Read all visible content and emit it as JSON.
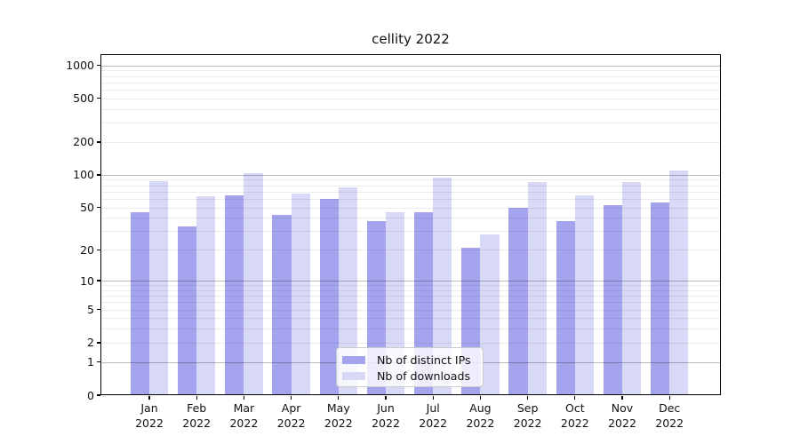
{
  "title": "cellity 2022",
  "chart_data": {
    "type": "bar",
    "title": "cellity 2022",
    "categories": [
      "Jan 2022",
      "Feb 2022",
      "Mar 2022",
      "Apr 2022",
      "May 2022",
      "Jun 2022",
      "Jul 2022",
      "Aug 2022",
      "Sep 2022",
      "Oct 2022",
      "Nov 2022",
      "Dec 2022"
    ],
    "series": [
      {
        "name": "Nb of distinct IPs",
        "color": "#a3a3ee",
        "values": [
          45,
          33,
          65,
          43,
          60,
          37,
          45,
          21,
          50,
          37,
          53,
          56
        ]
      },
      {
        "name": "Nb of downloads",
        "color": "#d8d8f7",
        "values": [
          88,
          64,
          103,
          67,
          76,
          45,
          94,
          28,
          86,
          65,
          86,
          110
        ]
      }
    ],
    "xlabel": "",
    "ylabel": "",
    "yscale": "log10(value+1)",
    "ylim": [
      0,
      1264
    ],
    "yticks": [
      0,
      1,
      2,
      5,
      10,
      20,
      50,
      100,
      200,
      500,
      1000
    ],
    "grid": {
      "major_at": [
        1,
        10,
        100,
        1000
      ],
      "minor_at": [
        2,
        3,
        4,
        5,
        6,
        7,
        8,
        9,
        20,
        30,
        40,
        50,
        60,
        70,
        80,
        90,
        200,
        300,
        400,
        500,
        600,
        700,
        800,
        900
      ],
      "drawn_above_bars": true
    },
    "legend_position": "lower center"
  },
  "legend": {
    "items": [
      {
        "label": "Nb of distinct IPs",
        "color": "#a3a3ee"
      },
      {
        "label": "Nb of downloads",
        "color": "#d8d8f7"
      }
    ]
  },
  "colors": {
    "series_ips": "#a3a3ee",
    "series_downloads": "#d8d8f7",
    "grid_major": "rgba(0,0,0,0.27)",
    "grid_minor": "rgba(0,0,0,0.075)",
    "spine": "#000000",
    "background": "#ffffff"
  }
}
